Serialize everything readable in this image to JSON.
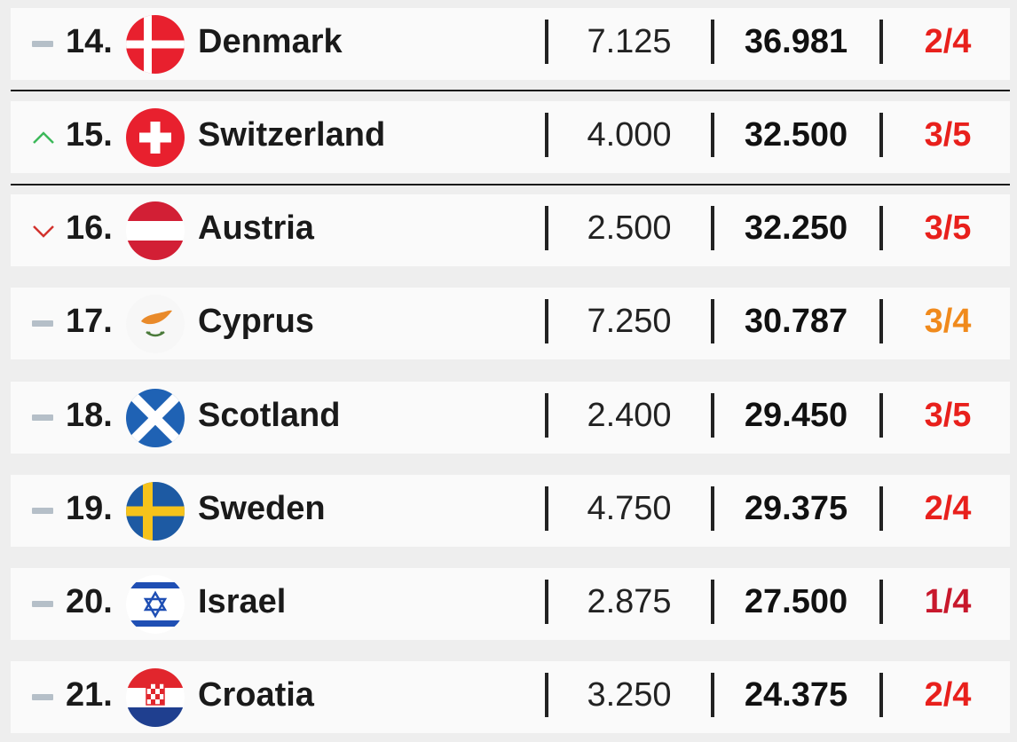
{
  "rows": [
    {
      "trend": "same",
      "rank": "14.",
      "country": "Denmark",
      "flag": "denmark-flag",
      "v1": "7.125",
      "v2": "36.981",
      "frac": "2/4",
      "frac_color": "#e8201c"
    },
    {
      "trend": "up",
      "rank": "15.",
      "country": "Switzerland",
      "flag": "switzerland-flag",
      "v1": "4.000",
      "v2": "32.500",
      "frac": "3/5",
      "frac_color": "#e8201c"
    },
    {
      "trend": "down",
      "rank": "16.",
      "country": "Austria",
      "flag": "austria-flag",
      "v1": "2.500",
      "v2": "32.250",
      "frac": "3/5",
      "frac_color": "#e8201c"
    },
    {
      "trend": "same",
      "rank": "17.",
      "country": "Cyprus",
      "flag": "cyprus-flag",
      "v1": "7.250",
      "v2": "30.787",
      "frac": "3/4",
      "frac_color": "#f08a1c"
    },
    {
      "trend": "same",
      "rank": "18.",
      "country": "Scotland",
      "flag": "scotland-flag",
      "v1": "2.400",
      "v2": "29.450",
      "frac": "3/5",
      "frac_color": "#e8201c"
    },
    {
      "trend": "same",
      "rank": "19.",
      "country": "Sweden",
      "flag": "sweden-flag",
      "v1": "4.750",
      "v2": "29.375",
      "frac": "2/4",
      "frac_color": "#e8201c"
    },
    {
      "trend": "same",
      "rank": "20.",
      "country": "Israel",
      "flag": "israel-flag",
      "v1": "2.875",
      "v2": "27.500",
      "frac": "1/4",
      "frac_color": "#c8182c"
    },
    {
      "trend": "same",
      "rank": "21.",
      "country": "Croatia",
      "flag": "croatia-flag",
      "v1": "3.250",
      "v2": "24.375",
      "frac": "2/4",
      "frac_color": "#e8201c"
    }
  ],
  "colors": {
    "up": "#3cb95a",
    "down": "#d2322d",
    "same": "#b5bfc8"
  }
}
